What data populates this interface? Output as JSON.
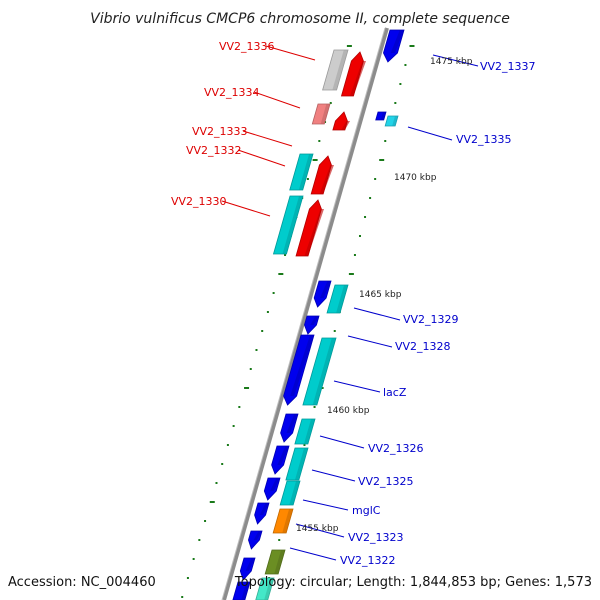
{
  "title": "Vibrio vulnificus CMCP6 chromosome II, complete sequence",
  "footer": {
    "accession": "Accession: NC_004460",
    "topology": "Topology: circular; Length: 1,844,853 bp; Genes: 1,573"
  },
  "colors": {
    "forward_label": "#0000cc",
    "reverse_label": "#dd0000",
    "backbone": "#8c8c8c",
    "tick": "#1a7a1a",
    "blue_gene": "#0000ee",
    "cyan_gene": "#00cccc",
    "red_gene": "#ee0000",
    "grey_gene": "#cccccc",
    "pink_gene": "#f08080",
    "orange_gene": "#ff8800",
    "olive_gene": "#6b8e23"
  },
  "scale_labels": [
    "1475 kbp",
    "1470 kbp",
    "1465 kbp",
    "1460 kbp",
    "1455 kbp"
  ],
  "forward_genes": [
    "VV2_1337",
    "VV2_1335",
    "VV2_1329",
    "VV2_1328",
    "lacZ",
    "VV2_1326",
    "VV2_1325",
    "mglC",
    "VV2_1323",
    "VV2_1322"
  ],
  "reverse_genes": [
    "VV2_1336",
    "VV2_1334",
    "VV2_1333",
    "VV2_1332",
    "VV2_1330"
  ]
}
